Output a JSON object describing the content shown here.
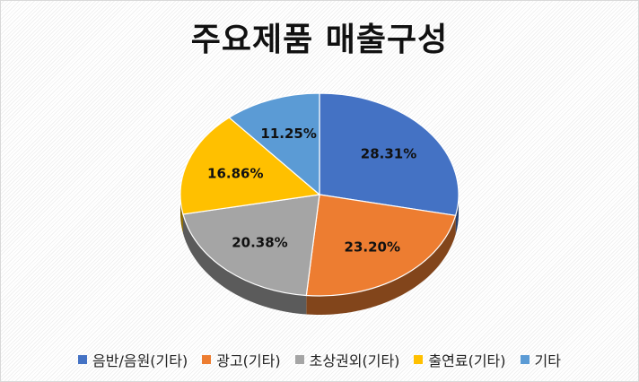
{
  "chart_data": {
    "type": "pie",
    "title": "주요제품 매출구성",
    "labels": [
      "음반/음원(기타)",
      "광고(기타)",
      "초상권외(기타)",
      "출연료(기타)",
      "기타"
    ],
    "values": [
      28.31,
      23.2,
      20.38,
      16.86,
      11.25
    ],
    "data_labels": [
      "28.31%",
      "23.20%",
      "20.38%",
      "16.86%",
      "11.25%"
    ],
    "colors": [
      "#4472C4",
      "#ED7D31",
      "#A5A5A5",
      "#FFC000",
      "#5B9BD5"
    ],
    "style": "3d",
    "legend_position": "bottom"
  }
}
